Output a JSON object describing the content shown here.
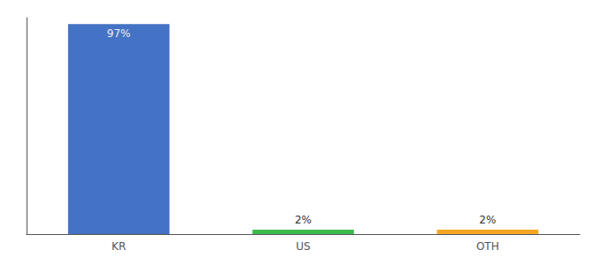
{
  "chart_data": {
    "type": "bar",
    "categories": [
      "KR",
      "US",
      "OTH"
    ],
    "values": [
      97,
      2,
      2
    ],
    "value_labels": [
      "97%",
      "2%",
      "2%"
    ],
    "colors": [
      "#4472c4",
      "#3dba4e",
      "#f5a623"
    ],
    "ylim": [
      0,
      100
    ],
    "grid": false,
    "data_labels": true,
    "tick_labels": "x"
  }
}
